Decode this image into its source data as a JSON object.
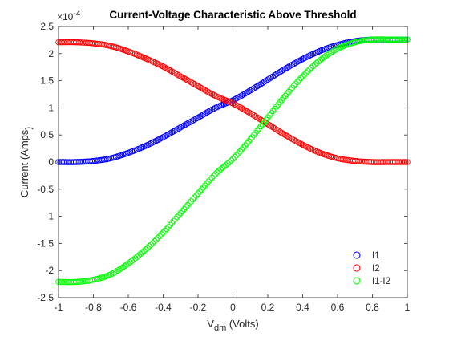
{
  "chart_data": {
    "type": "scatter",
    "title": "Current-Voltage Characteristic Above Threshold",
    "xlabel": {
      "base": "V",
      "subscript": "dm",
      "rest": " (Volts)"
    },
    "ylabel": {
      "base": "Current (Amps",
      "subscript": ")",
      "rest": ""
    },
    "y_exponent_label": {
      "prefix": "×10",
      "power": "-4"
    },
    "xlim": [
      -1,
      1
    ],
    "ylim": [
      -2.5,
      2.5
    ],
    "xticks": [
      -1,
      -0.8,
      -0.6,
      -0.4,
      -0.2,
      0,
      0.2,
      0.4,
      0.6,
      0.8,
      1
    ],
    "xtick_labels": [
      "-1",
      "-0.8",
      "-0.6",
      "-0.4",
      "-0.2",
      "0",
      "0.2",
      "0.4",
      "0.6",
      "0.8",
      "1"
    ],
    "yticks": [
      -2.5,
      -2,
      -1.5,
      -1,
      -0.5,
      0,
      0.5,
      1,
      1.5,
      2,
      2.5
    ],
    "ytick_labels": [
      "-2.5",
      "-2",
      "-1.5",
      "-1",
      "-0.5",
      "0",
      "0.5",
      "1",
      "1.5",
      "2",
      "2.5"
    ],
    "grid": false,
    "legend_position": "bottom-right",
    "y_scale_note": "values in units of 1e-4 A",
    "x": [
      -1.0,
      -0.9,
      -0.8,
      -0.7,
      -0.6,
      -0.5,
      -0.4,
      -0.3,
      -0.2,
      -0.1,
      0.0,
      0.1,
      0.2,
      0.3,
      0.4,
      0.5,
      0.6,
      0.7,
      0.8,
      0.9,
      1.0
    ],
    "series": [
      {
        "name": "I1",
        "color": "#0000ff",
        "values": [
          0.0,
          0.0,
          0.02,
          0.07,
          0.17,
          0.3,
          0.46,
          0.64,
          0.82,
          1.0,
          1.14,
          1.32,
          1.52,
          1.72,
          1.9,
          2.05,
          2.16,
          2.23,
          2.26,
          2.26,
          2.26
        ]
      },
      {
        "name": "I2",
        "color": "#ff0000",
        "values": [
          2.21,
          2.21,
          2.19,
          2.14,
          2.04,
          1.91,
          1.76,
          1.58,
          1.4,
          1.22,
          1.08,
          0.9,
          0.7,
          0.5,
          0.32,
          0.17,
          0.07,
          0.02,
          0.0,
          0.0,
          0.0
        ]
      },
      {
        "name": "I1-I2",
        "color": "#00ff00",
        "values": [
          -2.21,
          -2.21,
          -2.17,
          -2.07,
          -1.87,
          -1.61,
          -1.3,
          -0.94,
          -0.58,
          -0.22,
          0.06,
          0.42,
          0.82,
          1.22,
          1.58,
          1.88,
          2.09,
          2.21,
          2.26,
          2.26,
          2.26
        ]
      }
    ]
  }
}
